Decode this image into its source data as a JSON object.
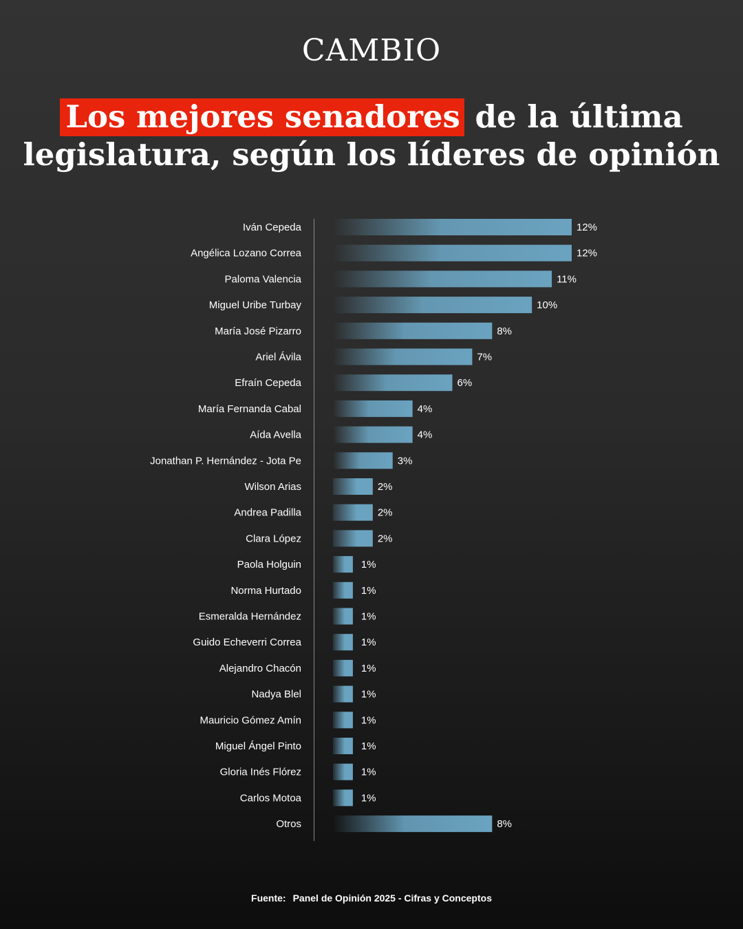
{
  "brand": {
    "logo": "CAMBIO"
  },
  "headline": {
    "highlight": "Los mejores senadores",
    "rest_line1": "de la última",
    "line2": "legislatura, según los líderes de opinión",
    "highlight_color": "#e8240c"
  },
  "chart_data": {
    "type": "bar",
    "orientation": "horizontal",
    "title": "",
    "xlabel": "",
    "ylabel": "",
    "unit": "%",
    "bar_color": "#6aa3c0",
    "categories": [
      "Iván Cepeda",
      "Angélica Lozano Correa",
      "Paloma Valencia",
      "Miguel Uribe Turbay",
      "María José Pizarro",
      "Ariel Ávila",
      "Efraín Cepeda",
      "María Fernanda Cabal",
      "Aída Avella",
      "Jonathan P. Hernández - Jota Pe",
      "Wilson Arias",
      "Andrea Padilla",
      "Clara López",
      "Paola Holguin",
      "Norma Hurtado",
      "Esmeralda Hernández",
      "Guido Echeverri Correa",
      "Alejandro Chacón",
      "Nadya Blel",
      "Mauricio Gómez Amín",
      "Miguel Ángel Pinto",
      "Gloria Inés Flórez",
      "Carlos Motoa",
      "Otros"
    ],
    "values": [
      12,
      12,
      11,
      10,
      8,
      7,
      6,
      4,
      4,
      3,
      2,
      2,
      2,
      1,
      1,
      1,
      1,
      1,
      1,
      1,
      1,
      1,
      1,
      8
    ],
    "labels": [
      "12%",
      "12%",
      "11%",
      "10%",
      "8%",
      "7%",
      "6%",
      "4%",
      "4%",
      "3%",
      "2%",
      "2%",
      "2%",
      "1%",
      "1%",
      "1%",
      "1%",
      "1%",
      "1%",
      "1%",
      "1%",
      "1%",
      "1%",
      "8%"
    ],
    "xlim": [
      0,
      12
    ]
  },
  "source": {
    "label": "Fuente:",
    "text": "Panel de Opinión 2025 - Cifras y Conceptos"
  }
}
